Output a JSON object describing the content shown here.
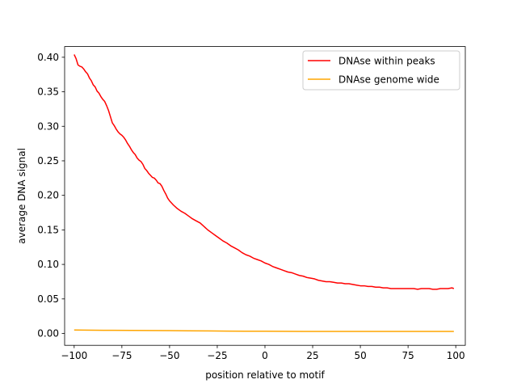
{
  "chart_data": {
    "type": "line",
    "xlabel": "position relative to motif",
    "ylabel": "average DNA signal",
    "xlim": [
      -105,
      105
    ],
    "ylim": [
      -0.0172,
      0.4155
    ],
    "x_ticks": [
      -100,
      -75,
      -50,
      -25,
      0,
      25,
      50,
      75,
      100
    ],
    "x_tick_labels": [
      "−100",
      "−75",
      "−50",
      "−25",
      "0",
      "25",
      "50",
      "75",
      "100"
    ],
    "y_ticks": [
      0.0,
      0.05,
      0.1,
      0.15,
      0.2,
      0.25,
      0.3,
      0.35,
      0.4
    ],
    "y_tick_labels": [
      "0.00",
      "0.05",
      "0.10",
      "0.15",
      "0.20",
      "0.25",
      "0.30",
      "0.35",
      "0.40"
    ],
    "grid": false,
    "legend_placement": "top-right",
    "series": [
      {
        "name": "DNAse within peaks",
        "color": "#ff0000",
        "x": [
          -100,
          -99,
          -98,
          -97,
          -96,
          -95,
          -94,
          -93,
          -92,
          -91,
          -90,
          -89,
          -88,
          -87,
          -86,
          -85,
          -84,
          -83,
          -82,
          -81,
          -80,
          -79,
          -78,
          -77,
          -76,
          -75,
          -74,
          -73,
          -72,
          -71,
          -70,
          -69,
          -68,
          -67,
          -66,
          -65,
          -64,
          -63,
          -62,
          -61,
          -60,
          -59,
          -58,
          -57,
          -56,
          -55,
          -54,
          -53,
          -52,
          -51,
          -50,
          -48,
          -46,
          -44,
          -42,
          -40,
          -38,
          -36,
          -34,
          -32,
          -30,
          -28,
          -26,
          -24,
          -22,
          -20,
          -18,
          -16,
          -14,
          -12,
          -10,
          -8,
          -6,
          -4,
          -2,
          0,
          2,
          4,
          6,
          8,
          10,
          12,
          14,
          16,
          18,
          20,
          22,
          24,
          26,
          28,
          30,
          32,
          34,
          36,
          38,
          40,
          42,
          44,
          46,
          48,
          50,
          52,
          54,
          56,
          58,
          60,
          62,
          64,
          66,
          68,
          70,
          72,
          74,
          76,
          78,
          80,
          82,
          84,
          86,
          88,
          90,
          92,
          94,
          96,
          98,
          99
        ],
        "y": [
          0.404,
          0.398,
          0.389,
          0.387,
          0.386,
          0.383,
          0.379,
          0.376,
          0.37,
          0.366,
          0.36,
          0.357,
          0.351,
          0.348,
          0.343,
          0.339,
          0.336,
          0.33,
          0.323,
          0.314,
          0.305,
          0.301,
          0.296,
          0.292,
          0.289,
          0.287,
          0.284,
          0.28,
          0.275,
          0.271,
          0.266,
          0.262,
          0.259,
          0.254,
          0.251,
          0.249,
          0.245,
          0.239,
          0.236,
          0.232,
          0.229,
          0.226,
          0.225,
          0.222,
          0.218,
          0.217,
          0.213,
          0.207,
          0.202,
          0.196,
          0.192,
          0.186,
          0.181,
          0.177,
          0.174,
          0.17,
          0.166,
          0.163,
          0.16,
          0.155,
          0.15,
          0.146,
          0.142,
          0.138,
          0.134,
          0.131,
          0.127,
          0.124,
          0.121,
          0.117,
          0.114,
          0.112,
          0.109,
          0.107,
          0.105,
          0.102,
          0.1,
          0.097,
          0.095,
          0.093,
          0.091,
          0.089,
          0.088,
          0.086,
          0.084,
          0.083,
          0.081,
          0.08,
          0.079,
          0.077,
          0.076,
          0.075,
          0.075,
          0.074,
          0.073,
          0.073,
          0.072,
          0.072,
          0.071,
          0.07,
          0.069,
          0.069,
          0.068,
          0.068,
          0.067,
          0.067,
          0.066,
          0.066,
          0.065,
          0.065,
          0.065,
          0.065,
          0.065,
          0.065,
          0.065,
          0.064,
          0.065,
          0.065,
          0.065,
          0.064,
          0.064,
          0.065,
          0.065,
          0.065,
          0.066,
          0.065
        ]
      },
      {
        "name": "DNAse genome wide",
        "color": "#ffa500",
        "x": [
          -100,
          -90,
          -80,
          -70,
          -60,
          -50,
          -40,
          -30,
          -20,
          -10,
          0,
          10,
          20,
          30,
          40,
          50,
          60,
          70,
          80,
          90,
          99
        ],
        "y": [
          0.005,
          0.0047,
          0.0045,
          0.0044,
          0.0043,
          0.0041,
          0.0038,
          0.0036,
          0.0034,
          0.0033,
          0.0032,
          0.0031,
          0.003,
          0.003,
          0.0029,
          0.0029,
          0.0029,
          0.0029,
          0.0029,
          0.0029,
          0.003
        ]
      }
    ]
  }
}
